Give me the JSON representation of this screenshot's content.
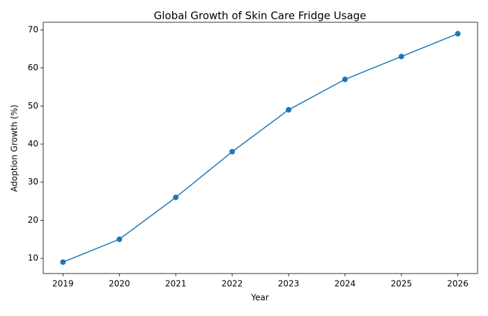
{
  "chart_data": {
    "type": "line",
    "title": "Global Growth of Skin Care Fridge Usage",
    "x_label": "Year",
    "y_label": "Adoption Growth (%)",
    "x": [
      2019,
      2020,
      2021,
      2022,
      2023,
      2024,
      2025,
      2026
    ],
    "series": [
      {
        "name": "Adoption Growth",
        "color": "#1f77b4",
        "values": [
          9,
          15,
          26,
          38,
          49,
          57,
          63,
          69
        ]
      }
    ],
    "xlim": [
      2018.65,
      2026.35
    ],
    "xticks": [
      2019,
      2020,
      2021,
      2022,
      2023,
      2024,
      2025,
      2026
    ],
    "ylim": [
      6,
      72
    ],
    "yticks": [
      10,
      20,
      30,
      40,
      50,
      60,
      70
    ],
    "markers": true
  }
}
